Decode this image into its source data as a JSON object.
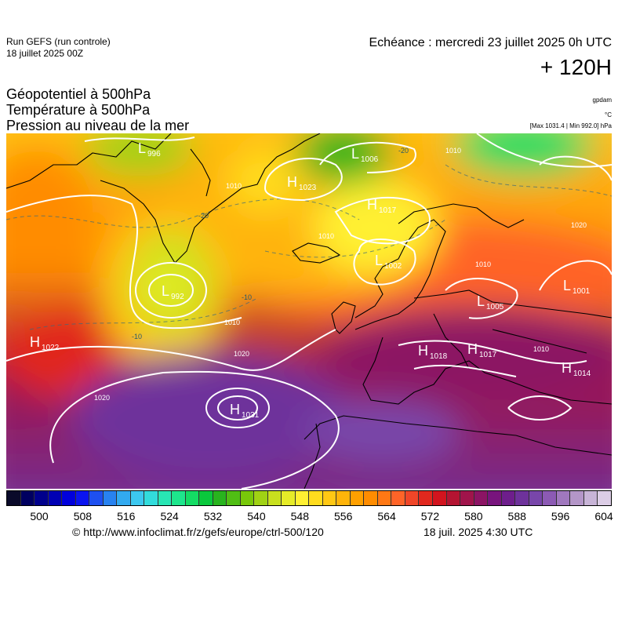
{
  "header": {
    "run_title": "Run GEFS (run controle)",
    "run_date": "18 juillet 2025 00Z",
    "echeance": "Echéance : mercredi 23 juillet 2025 0h UTC",
    "horizon": "+ 120H"
  },
  "parameters": [
    "Géopotentiel à 500hPa",
    "Température à 500hPa",
    "Pression au niveau de la mer"
  ],
  "units": {
    "geopotential": "gpdam",
    "temperature": "°C",
    "pressure": "[Max 1031.4 | Min 992.0] hPa"
  },
  "colors": {
    "scale": [
      "#0a0a2a",
      "#000060",
      "#00008c",
      "#0000b4",
      "#0000dc",
      "#0a14f0",
      "#1e50f0",
      "#2882f0",
      "#32aaf0",
      "#3cc8f0",
      "#32dcdc",
      "#28e6b4",
      "#1ee68c",
      "#14dc64",
      "#0ac83c",
      "#28b41e",
      "#50be14",
      "#78c80a",
      "#a0d214",
      "#c8e01e",
      "#e6ec28",
      "#fff032",
      "#ffdc1e",
      "#ffc814",
      "#ffb40a",
      "#ffa000",
      "#ff8c00",
      "#ff7814",
      "#ff6428",
      "#f04628",
      "#e1281e",
      "#d2141e",
      "#b41432",
      "#a0144b",
      "#8c1464",
      "#78147d",
      "#6e1e8c",
      "#6e329b",
      "#7846aa",
      "#8c5ab4",
      "#a078be",
      "#b496c8",
      "#c8b4d7",
      "#dccde6"
    ],
    "contour": "#ffffff",
    "coast": "#000000"
  },
  "colorbar_ticks": [
    "500",
    "508",
    "516",
    "524",
    "532",
    "540",
    "548",
    "556",
    "564",
    "572",
    "580",
    "588",
    "596",
    "604"
  ],
  "map_labels": {
    "highs": [
      {
        "letter": "H",
        "value": "1022"
      },
      {
        "letter": "H",
        "value": "1031"
      },
      {
        "letter": "H",
        "value": "1023"
      },
      {
        "letter": "H",
        "value": "1017"
      },
      {
        "letter": "H",
        "value": "1018"
      },
      {
        "letter": "H",
        "value": "1017"
      },
      {
        "letter": "H",
        "value": "1014"
      }
    ],
    "lows": [
      {
        "letter": "L",
        "value": "996"
      },
      {
        "letter": "L",
        "value": "1006"
      },
      {
        "letter": "L",
        "value": "992"
      },
      {
        "letter": "L",
        "value": "1002"
      },
      {
        "letter": "L",
        "value": "1005"
      },
      {
        "letter": "L",
        "value": "1001"
      }
    ],
    "isobars": [
      "1010",
      "1020",
      "1010",
      "1020",
      "1010",
      "1010",
      "1010",
      "1020",
      "1010"
    ],
    "isotherms": [
      "-20",
      "-10",
      "-20",
      "-10"
    ]
  },
  "footer": {
    "source": "© http://www.infoclimat.fr/z/gefs/europe/ctrl-500/120",
    "timestamp": "18 juil. 2025  4:30 UTC"
  }
}
